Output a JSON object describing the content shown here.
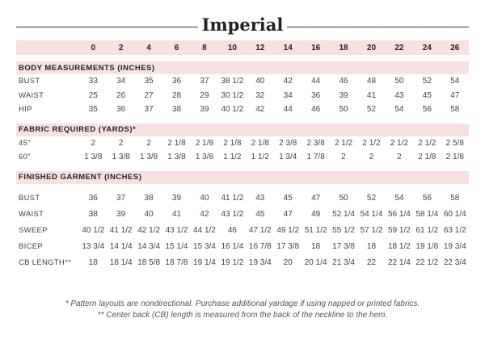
{
  "title": "Imperial",
  "sizes": [
    "0",
    "2",
    "4",
    "6",
    "8",
    "10",
    "12",
    "14",
    "16",
    "18",
    "20",
    "22",
    "24",
    "26"
  ],
  "sections": [
    {
      "heading": "BODY MEASUREMENTS (INCHES)",
      "rows": [
        {
          "label": "BUST",
          "values": [
            "33",
            "34",
            "35",
            "36",
            "37",
            "38 1/2",
            "40",
            "42",
            "44",
            "46",
            "48",
            "50",
            "52",
            "54"
          ]
        },
        {
          "label": "WAIST",
          "values": [
            "25",
            "26",
            "27",
            "28",
            "29",
            "30 1/2",
            "32",
            "34",
            "36",
            "39",
            "41",
            "43",
            "45",
            "47"
          ]
        },
        {
          "label": "HIP",
          "values": [
            "35",
            "36",
            "37",
            "38",
            "39",
            "40 1/2",
            "42",
            "44",
            "46",
            "50",
            "52",
            "54",
            "56",
            "58"
          ]
        }
      ]
    },
    {
      "heading": "FABRIC REQUIRED (YARDS)*",
      "rows": [
        {
          "label": "45\"",
          "values": [
            "2",
            "2",
            "2",
            "2 1/8",
            "2 1/8",
            "2 1/8",
            "2 1/8",
            "2 3/8",
            "2 3/8",
            "2 1/2",
            "2 1/2",
            "2 1/2",
            "2 1/2",
            "2 5/8"
          ]
        },
        {
          "label": "60\"",
          "values": [
            "1 3/8",
            "1 3/8",
            "1 3/8",
            "1 3/8",
            "1 3/8",
            "1 1/2",
            "1 1/2",
            "1 3/4",
            "1 7/8",
            "2",
            "2",
            "2",
            "2 1/8",
            "2 1/8"
          ]
        }
      ]
    },
    {
      "heading": "FINISHED GARMENT (INCHES)",
      "rows": [
        {
          "label": "BUST",
          "values": [
            "36",
            "37",
            "38",
            "39",
            "40",
            "41 1/2",
            "43",
            "45",
            "47",
            "50",
            "52",
            "54",
            "56",
            "58"
          ]
        },
        {
          "label": "WAIST",
          "values": [
            "38",
            "39",
            "40",
            "41",
            "42",
            "43 1/2",
            "45",
            "47",
            "49",
            "52 1/4",
            "54 1/4",
            "56 1/4",
            "58 1/4",
            "60 1/4"
          ]
        },
        {
          "label": "SWEEP",
          "values": [
            "40 1/2",
            "41 1/2",
            "42 1/2",
            "43 1/2",
            "44 1/2",
            "46",
            "47 1/2",
            "49 1/2",
            "51 1/2",
            "55 1/2",
            "57 1/2",
            "59 1/2",
            "61 1/2",
            "63 1/2"
          ]
        },
        {
          "label": "BICEP",
          "values": [
            "13 3/4",
            "14 1/4",
            "14 3/4",
            "15 1/4",
            "15 3/4",
            "16 1/4",
            "16 7/8",
            "17 3/8",
            "18",
            "17 3/8",
            "18",
            "18 1/2",
            "19 1/8",
            "19 3/4"
          ]
        },
        {
          "label": "CB LENGTH**",
          "values": [
            "18",
            "18 1/4",
            "18 5/8",
            "18 7/8",
            "19 1/4",
            "19 1/2",
            "19 3/4",
            "20",
            "20 1/4",
            "21 3/4",
            "22",
            "22 1/4",
            "22 1/2",
            "22 3/4"
          ]
        }
      ]
    }
  ],
  "notes": [
    "* Pattern layouts are nondirectional. Purchase additional yardage if using napped or printed fabrics.",
    "** Center back (CB) length is measured from the back of the neckline to the hem."
  ]
}
